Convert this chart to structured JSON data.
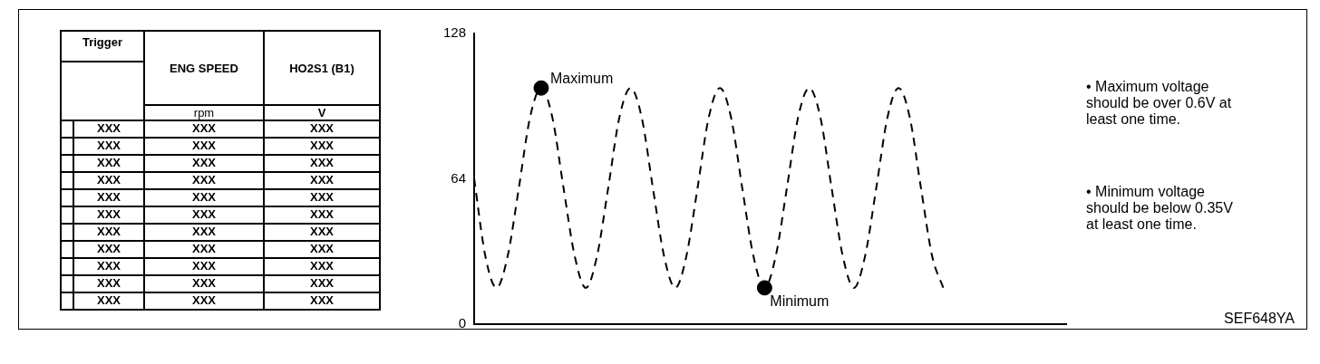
{
  "chart_data": [
    {
      "type": "other",
      "annotations": [
        "Trigger",
        "ENG SPEED",
        "HO2S1 (B1)",
        "rpm",
        "V",
        "XXX",
        "XXX",
        "XXX",
        "XXX",
        "XXX",
        "XXX",
        "XXX",
        "XXX",
        "XXX",
        "XXX",
        "XXX",
        "XXX",
        "XXX",
        "XXX",
        "XXX",
        "XXX",
        "XXX",
        "XXX",
        "XXX",
        "XXX",
        "XXX",
        "XXX",
        "XXX",
        "XXX",
        "XXX",
        "XXX",
        "XXX",
        "XXX",
        "XXX",
        "XXX",
        "XXX",
        "XXX",
        "XXX"
      ]
    },
    {
      "type": "line",
      "categories": [
        null,
        null,
        null,
        null,
        null,
        null,
        null,
        null,
        null,
        null,
        null,
        null,
        null,
        null,
        null,
        null,
        null,
        null,
        null,
        null,
        null,
        null,
        null,
        null,
        null,
        null,
        null,
        null,
        null,
        null,
        null,
        null,
        null,
        null,
        null,
        null,
        null,
        null,
        null,
        null,
        null,
        null,
        null,
        null,
        null,
        null,
        null,
        null,
        null,
        null,
        null,
        null,
        null,
        null
      ],
      "series": [
        {
          "color": "#000000",
          "line_style": "dashed",
          "marker": "none",
          "values": [
            64,
            30,
            16,
            30,
            60,
            91,
            104,
            91,
            60,
            30,
            16,
            30,
            60,
            91,
            104,
            91,
            60,
            30,
            16,
            30,
            60,
            91,
            104,
            91,
            60,
            30,
            16,
            30,
            60,
            91,
            104,
            91,
            60,
            30,
            16,
            30,
            60,
            91,
            104,
            91,
            60,
            30,
            16,
            null,
            null,
            null,
            null,
            null,
            null,
            null,
            null,
            null,
            null,
            null
          ]
        },
        {
          "type": "scatter",
          "color": "#000000",
          "marker": "circle",
          "values": [
            null,
            null,
            null,
            null,
            null,
            null,
            104,
            null,
            null,
            null,
            null,
            null,
            null,
            null,
            null,
            null,
            null,
            null,
            null,
            null,
            null,
            null,
            null,
            null,
            null,
            null,
            16,
            null,
            null,
            null,
            null,
            null,
            null,
            null,
            null,
            null,
            null,
            null,
            null,
            null,
            null,
            null,
            null,
            null,
            null,
            null,
            null,
            null,
            null,
            null,
            null,
            null,
            null,
            null
          ]
        }
      ],
      "ylim": [
        0,
        128
      ],
      "yticks": [
        0,
        64,
        128
      ],
      "grid": false,
      "legend": false,
      "annotations": [
        "Maximum",
        "Minimum",
        "• Maximum voltage should be over 0.6V at least one time.",
        "• Minimum voltage should be below 0.35V at least one time.",
        "SEF648YA"
      ]
    }
  ]
}
